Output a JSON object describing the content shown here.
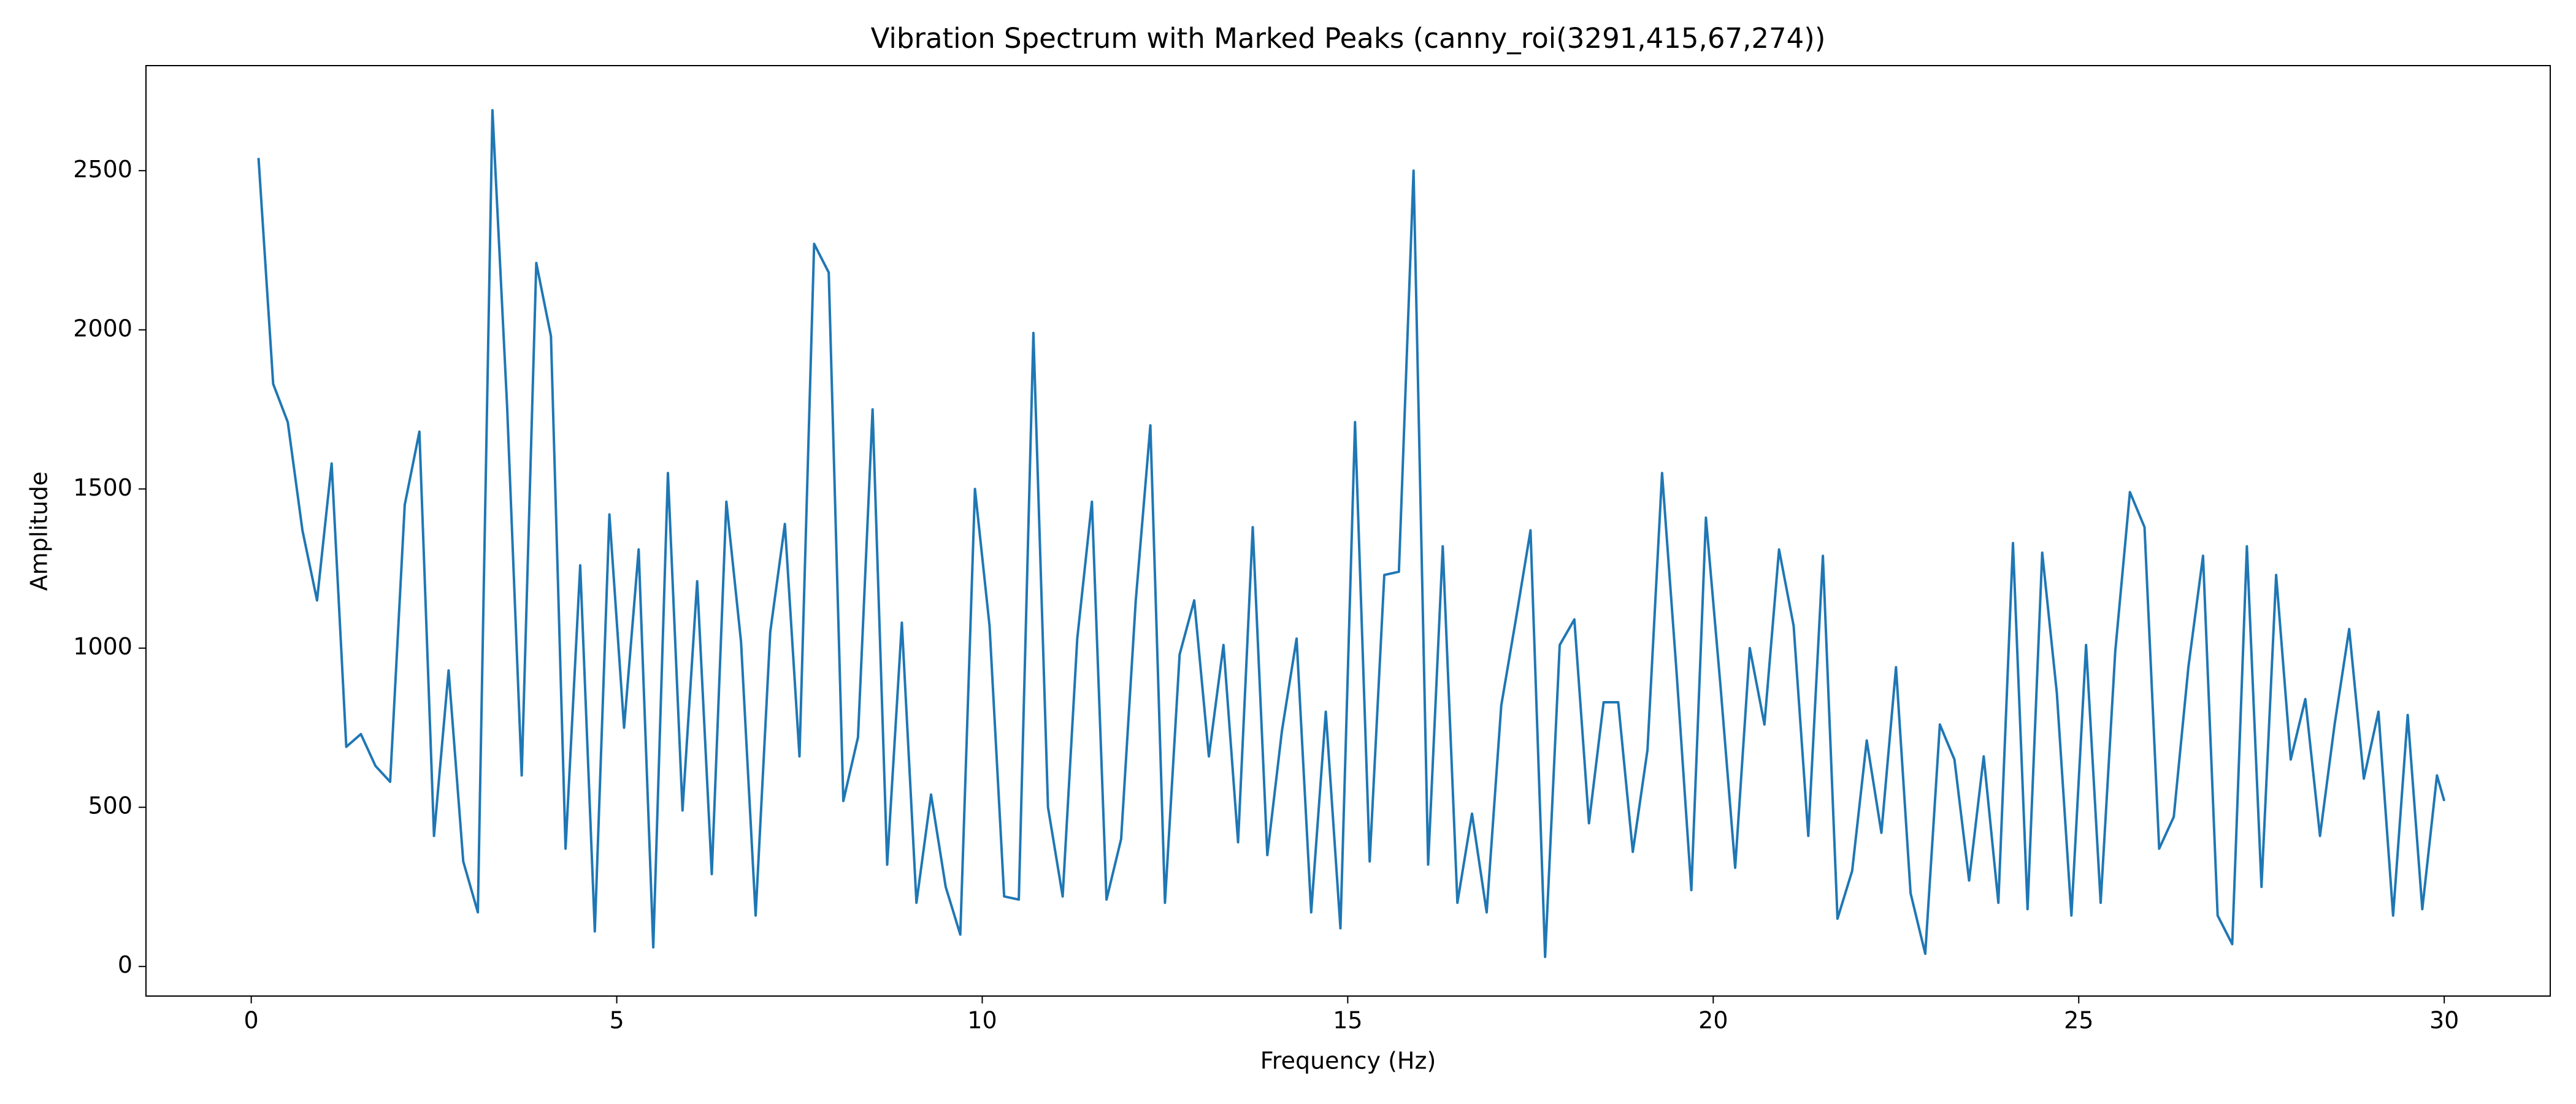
{
  "chart_data": {
    "type": "line",
    "title": "Vibration Spectrum with Marked Peaks (canny_roi(3291,415,67,274))",
    "xlabel": "Frequency (Hz)",
    "ylabel": "Amplitude",
    "color": "#1f77b4",
    "x": [
      0.1,
      0.3,
      0.5,
      0.7,
      0.9,
      1.1,
      1.3,
      1.5,
      1.7,
      1.9,
      2.1,
      2.3,
      2.5,
      2.7,
      2.9,
      3.1,
      3.3,
      3.5,
      3.7,
      3.9,
      4.1,
      4.3,
      4.5,
      4.7,
      4.9,
      5.1,
      5.3,
      5.5,
      5.7,
      5.9,
      6.1,
      6.3,
      6.5,
      6.7,
      6.9,
      7.1,
      7.3,
      7.5,
      7.7,
      7.9,
      8.1,
      8.3,
      8.5,
      8.7,
      8.9,
      9.1,
      9.3,
      9.5,
      9.7,
      9.9,
      10.1,
      10.3,
      10.5,
      10.7,
      10.9,
      11.1,
      11.3,
      11.5,
      11.7,
      11.9,
      12.1,
      12.3,
      12.5,
      12.7,
      12.9,
      13.1,
      13.3,
      13.5,
      13.7,
      13.9,
      14.1,
      14.3,
      14.5,
      14.7,
      14.9,
      15.1,
      15.3,
      15.5,
      15.7,
      15.9,
      16.1,
      16.3,
      16.5,
      16.7,
      16.9,
      17.1,
      17.3,
      17.5,
      17.7,
      17.9,
      18.1,
      18.3,
      18.5,
      18.7,
      18.9,
      19.1,
      19.3,
      19.5,
      19.7,
      19.9,
      20.1,
      20.3,
      20.5,
      20.7,
      20.9,
      21.1,
      21.3,
      21.5,
      21.7,
      21.9,
      22.1,
      22.3,
      22.5,
      22.7,
      22.9,
      23.1,
      23.3,
      23.5,
      23.7,
      23.9,
      24.1,
      24.3,
      24.5,
      24.7,
      24.9,
      25.1,
      25.3,
      25.5,
      25.7,
      25.9,
      26.1,
      26.3,
      26.5,
      26.7,
      26.9,
      27.1,
      27.3,
      27.5,
      27.7,
      27.9,
      28.1,
      28.3,
      28.5,
      28.7,
      28.9,
      29.1,
      29.3,
      29.5,
      29.7,
      29.9,
      30.0
    ],
    "values": [
      2540,
      1830,
      1710,
      1370,
      1150,
      1580,
      690,
      730,
      630,
      580,
      1450,
      1680,
      410,
      930,
      330,
      170,
      2690,
      1760,
      600,
      2210,
      1980,
      370,
      1260,
      110,
      1420,
      750,
      1310,
      60,
      1550,
      490,
      1210,
      290,
      1460,
      1020,
      160,
      1050,
      1390,
      660,
      2270,
      2180,
      520,
      720,
      1750,
      320,
      1080,
      200,
      540,
      250,
      100,
      1500,
      1070,
      220,
      210,
      1990,
      500,
      220,
      1030,
      1460,
      210,
      400,
      1150,
      1700,
      200,
      980,
      1150,
      660,
      1010,
      390,
      1380,
      350,
      740,
      1030,
      170,
      800,
      120,
      1710,
      330,
      1230,
      1240,
      2500,
      320,
      1320,
      200,
      480,
      170,
      820,
      1090,
      1370,
      30,
      1010,
      1090,
      450,
      830,
      830,
      360,
      680,
      1550,
      920,
      240,
      1410,
      880,
      310,
      1000,
      760,
      1310,
      1070,
      410,
      1290,
      150,
      300,
      710,
      420,
      940,
      230,
      40,
      760,
      650,
      270,
      660,
      200,
      1330,
      180,
      1300,
      860,
      160,
      1010,
      200,
      990,
      1490,
      1380,
      370,
      470,
      940,
      1290,
      160,
      70,
      1320,
      250,
      1230,
      650,
      840,
      410,
      760,
      1060,
      590,
      800,
      160,
      790,
      180,
      600,
      520
    ],
    "xlim": [
      -1.44,
      31.45
    ],
    "xticks": [
      0,
      5,
      10,
      15,
      20,
      25,
      30
    ],
    "ylim": [
      -93,
      2830
    ],
    "yticks": [
      0,
      500,
      1000,
      1500,
      2000,
      2500
    ]
  }
}
